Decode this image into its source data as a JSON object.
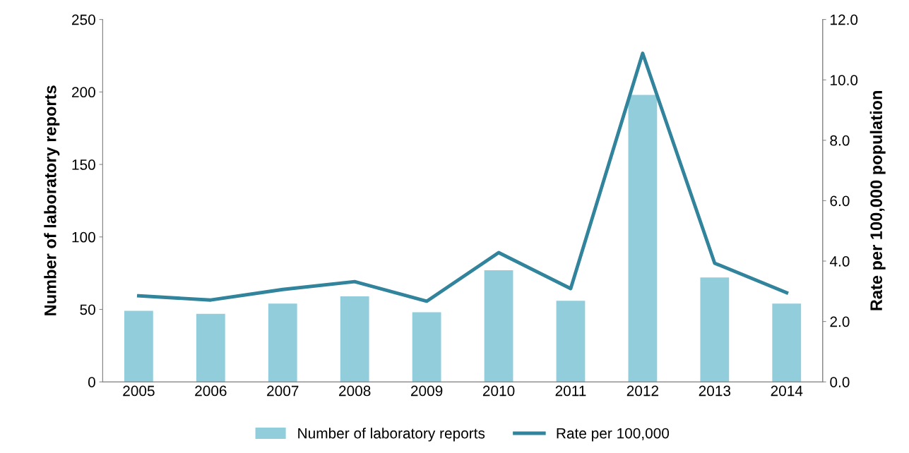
{
  "chart_data": {
    "type": "bar",
    "categories": [
      "2005",
      "2006",
      "2007",
      "2008",
      "2009",
      "2010",
      "2011",
      "2012",
      "2013",
      "2014"
    ],
    "ylabel": "Number of laboratory reports",
    "y2label": "Rate per 100,000 population",
    "series": [
      {
        "name": "Number of laboratory reports",
        "color": "#92cddc",
        "values": [
          49,
          47,
          54,
          59,
          48,
          77,
          56,
          198,
          72,
          54
        ]
      },
      {
        "name": "Rate per 100,000",
        "type": "line",
        "axis": "y2",
        "color": "#31849b",
        "values": [
          2.85,
          2.71,
          3.06,
          3.32,
          2.67,
          4.28,
          3.09,
          10.88,
          3.93,
          2.95
        ]
      }
    ],
    "ylim": [
      0,
      250
    ],
    "yticks": [
      0,
      50,
      100,
      150,
      200,
      250
    ],
    "y2lim": [
      0,
      12
    ],
    "y2ticks": [
      {
        "value": 0,
        "label": "0.0"
      },
      {
        "value": 2,
        "label": "2.0"
      },
      {
        "value": 4,
        "label": "4.0"
      },
      {
        "value": 6,
        "label": "6.0"
      },
      {
        "value": 8,
        "label": "8.0"
      },
      {
        "value": 10,
        "label": "10.0"
      },
      {
        "value": 12,
        "label": "12.0"
      }
    ],
    "grid": false,
    "legend": "bottom",
    "marker": "none",
    "line_style": "solid"
  }
}
